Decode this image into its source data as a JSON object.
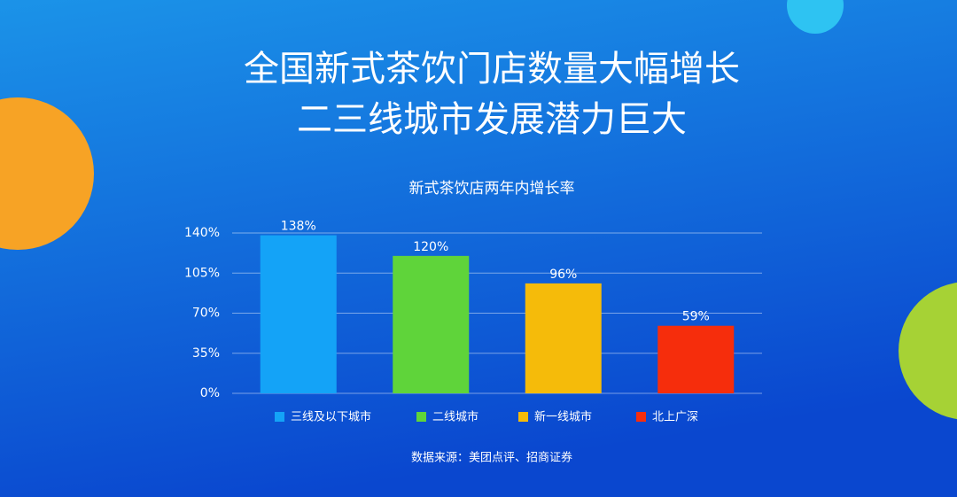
{
  "headline": [
    "全国新式茶饮门店数量大幅增长",
    "二三线城市发展潜力巨大"
  ],
  "chart_data": {
    "type": "bar",
    "title": "新式茶饮店两年内增长率",
    "categories": [
      "三线及以下城市",
      "二线城市",
      "新一线城市",
      "北上广深"
    ],
    "values": [
      138,
      120,
      96,
      59
    ],
    "value_labels": [
      "138%",
      "120%",
      "96%",
      "59%"
    ],
    "colors": [
      "#14a3f7",
      "#5fd43a",
      "#f5bb0a",
      "#f62d0c"
    ],
    "ylim": [
      0,
      140
    ],
    "yticks": [
      {
        "value": 0,
        "label": "0%"
      },
      {
        "value": 35,
        "label": "35%"
      },
      {
        "value": 70,
        "label": "70%"
      },
      {
        "value": 105,
        "label": "105%"
      },
      {
        "value": 140,
        "label": "140%"
      }
    ],
    "grid": true
  },
  "source": "数据来源：美团点评、招商证券"
}
